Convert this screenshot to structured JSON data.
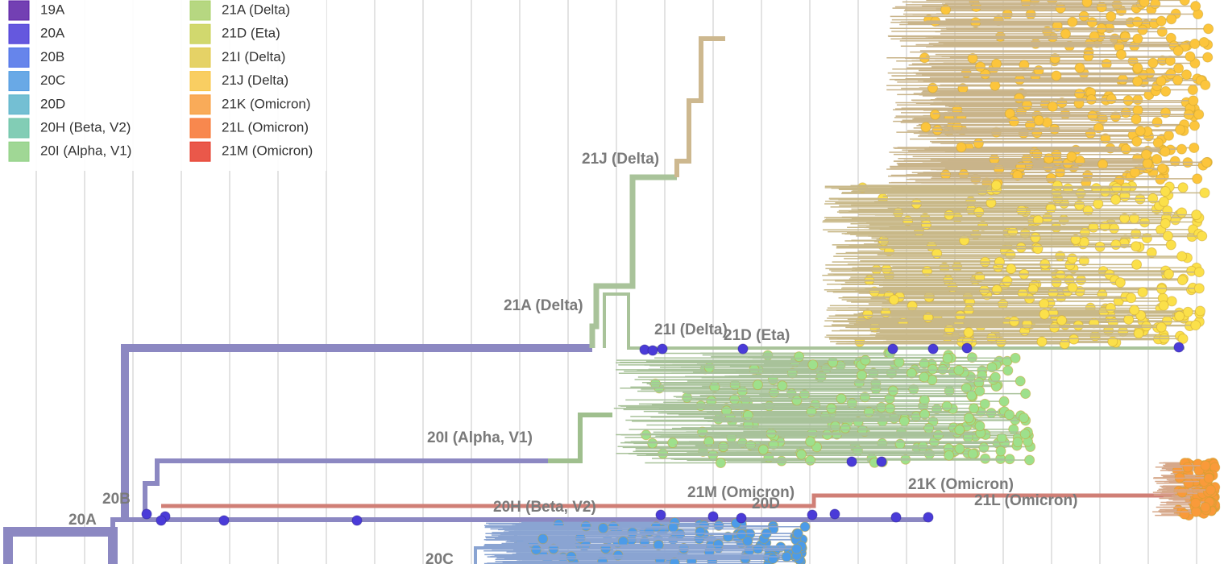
{
  "legend": {
    "items": [
      {
        "label": "19A",
        "color": "#5b1fa6"
      },
      {
        "label": "20A",
        "color": "#4a3bd8"
      },
      {
        "label": "20B",
        "color": "#4b70e8"
      },
      {
        "label": "20C",
        "color": "#4f9ae2"
      },
      {
        "label": "20D",
        "color": "#5cb4cb"
      },
      {
        "label": "20H (Beta, V2)",
        "color": "#6cc4a8"
      },
      {
        "label": "20I (Alpha, V1)",
        "color": "#8fd083"
      },
      {
        "label": "21A (Delta)",
        "color": "#a9d06b"
      },
      {
        "label": "21D (Eta)",
        "color": "#c9d155"
      },
      {
        "label": "21I (Delta)",
        "color": "#e1ca4b"
      },
      {
        "label": "21J (Delta)",
        "color": "#f8c546"
      },
      {
        "label": "21K (Omicron)",
        "color": "#f89c3c"
      },
      {
        "label": "21L (Omicron)",
        "color": "#f7732f"
      },
      {
        "label": "21M (Omicron)",
        "color": "#e63b2a"
      }
    ]
  },
  "clade_labels": [
    "21J (Delta)",
    "21A (Delta)",
    "21I (Delta)",
    "21D (Eta)",
    "20I (Alpha, V1)",
    "21M (Omicron)",
    "20D",
    "21K (Omicron)",
    "21L (Omicron)",
    "20H (Beta, V2)",
    "20B",
    "20A",
    "20C"
  ]
}
